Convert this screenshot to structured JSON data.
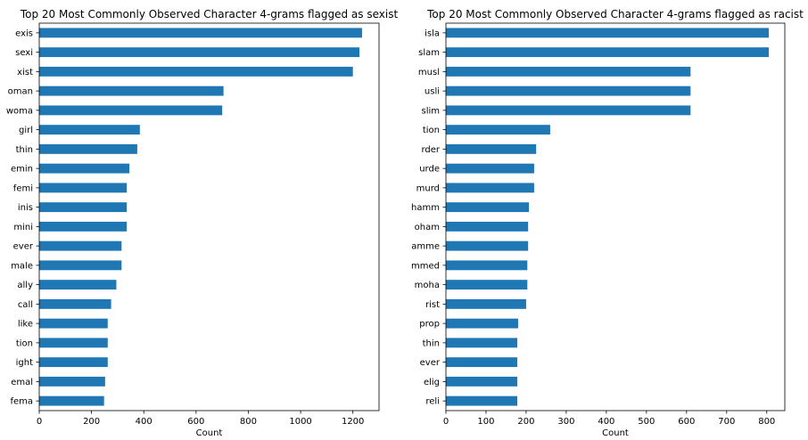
{
  "chart_data": [
    {
      "type": "bar",
      "orientation": "horizontal",
      "title": "Top 20 Most Commonly Observed Character 4-grams flagged as sexist",
      "xlabel": "Count",
      "ylabel": "",
      "xlim": [
        0,
        1300
      ],
      "xticks": [
        0,
        200,
        400,
        600,
        800,
        1000,
        1200
      ],
      "grid": false,
      "bar_color": "#1f77b4",
      "categories": [
        "exis",
        "sexi",
        "xist",
        "oman",
        "woma",
        "girl",
        "thin",
        "emin",
        "femi",
        "inis",
        "mini",
        "ever",
        "male",
        "ally",
        "call",
        "like",
        "tion",
        "ight",
        "emal",
        "fema"
      ],
      "values": [
        1235,
        1225,
        1200,
        705,
        700,
        385,
        375,
        345,
        335,
        335,
        335,
        315,
        315,
        295,
        275,
        262,
        262,
        262,
        252,
        248
      ]
    },
    {
      "type": "bar",
      "orientation": "horizontal",
      "title": "Top 20 Most Commonly Observed Character 4-grams flagged as racist",
      "xlabel": "Count",
      "ylabel": "",
      "xlim": [
        0,
        845
      ],
      "xticks": [
        0,
        100,
        200,
        300,
        400,
        500,
        600,
        700,
        800
      ],
      "grid": false,
      "bar_color": "#1f77b4",
      "categories": [
        "isla",
        "slam",
        "musl",
        "usli",
        "slim",
        "tion",
        "rder",
        "urde",
        "murd",
        "hamm",
        "oham",
        "amme",
        "mmed",
        "moha",
        "rist",
        "prop",
        "thin",
        "ever",
        "elig",
        "reli"
      ],
      "values": [
        805,
        805,
        610,
        610,
        610,
        260,
        225,
        220,
        220,
        207,
        205,
        205,
        203,
        203,
        200,
        180,
        178,
        178,
        178,
        178
      ]
    }
  ]
}
